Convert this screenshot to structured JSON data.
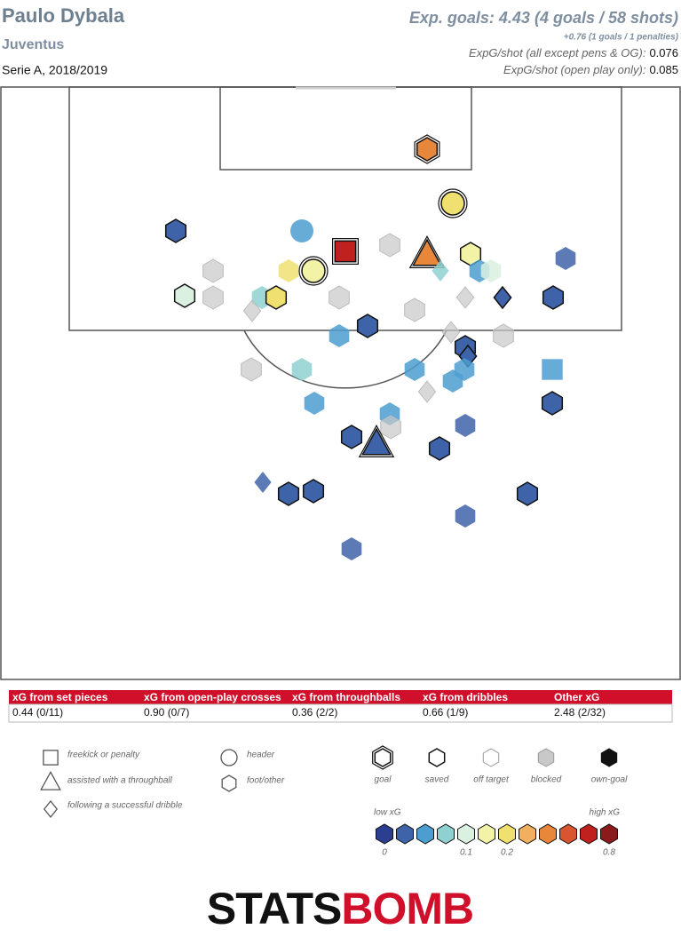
{
  "header": {
    "player": "Paulo Dybala",
    "team": "Juventus",
    "competition": "Serie A, 2018/2019",
    "xg_summary": "Exp. goals: 4.43 (4 goals / 58 shots)",
    "penalties": "+0.76 (1 goals / 1 penalties)",
    "per_shot_label": "ExpG/shot (all except pens & OG):",
    "per_shot_value": "0.076",
    "open_play_label": "ExpG/shot (open play only):",
    "open_play_value": "0.085"
  },
  "table": {
    "headers": [
      "xG from set pieces",
      "xG from open-play crosses",
      "xG from throughballs",
      "xG from dribbles",
      "Other xG"
    ],
    "values": [
      "0.44 (0/11)",
      "0.90 (0/7)",
      "0.36 (2/2)",
      "0.66 (1/9)",
      "2.48 (2/32)"
    ]
  },
  "legend": {
    "shapes": [
      "freekick or penalty",
      "assisted with a throughball",
      "following a successful dribble",
      "header",
      "foot/other"
    ],
    "outcomes": [
      "goal",
      "saved",
      "off target",
      "blocked",
      "own-goal"
    ],
    "scale_low": "low xG",
    "scale_high": "high xG",
    "scale_ticks": [
      "0",
      "0.1",
      "0.2",
      "0.8"
    ]
  },
  "logo": {
    "left": "STATS",
    "right": "BOMB"
  }
}
